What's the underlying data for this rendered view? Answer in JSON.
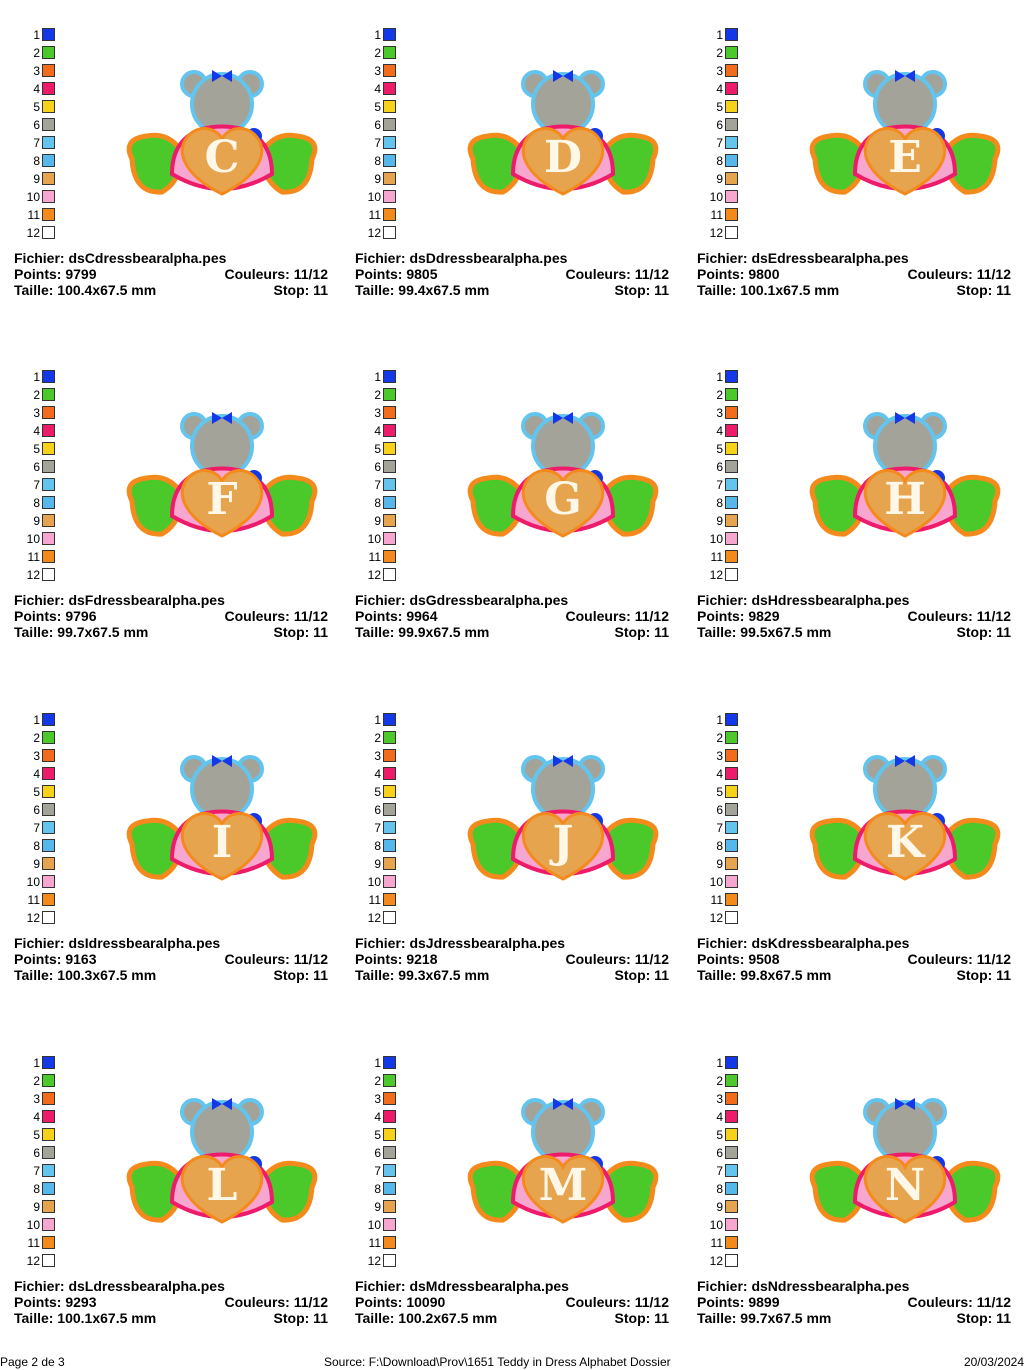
{
  "palette": {
    "numbers": [
      "1",
      "2",
      "3",
      "4",
      "5",
      "6",
      "7",
      "8",
      "9",
      "10",
      "11",
      "12"
    ],
    "colors": [
      "#1238e8",
      "#4bc92a",
      "#f26c1c",
      "#ee1a6a",
      "#f7d21a",
      "#a3a39a",
      "#63c4ee",
      "#56b8ea",
      "#e6a44e",
      "#f7a6d0",
      "#f58a1c",
      "#ffffff"
    ]
  },
  "designs": [
    {
      "letter": "C",
      "file_label": "Fichier: dsCdressbearalpha.pes",
      "points_label": "Points: 9799",
      "colors_label": "Couleurs: 11/12",
      "size_label": "Taille: 100.4x67.5 mm",
      "stop_label": "Stop: 11"
    },
    {
      "letter": "D",
      "file_label": "Fichier: dsDdressbearalpha.pes",
      "points_label": "Points: 9805",
      "colors_label": "Couleurs: 11/12",
      "size_label": "Taille: 99.4x67.5 mm",
      "stop_label": "Stop: 11"
    },
    {
      "letter": "E",
      "file_label": "Fichier: dsEdressbearalpha.pes",
      "points_label": "Points: 9800",
      "colors_label": "Couleurs: 11/12",
      "size_label": "Taille: 100.1x67.5 mm",
      "stop_label": "Stop: 11"
    },
    {
      "letter": "F",
      "file_label": "Fichier: dsFdressbearalpha.pes",
      "points_label": "Points: 9796",
      "colors_label": "Couleurs: 11/12",
      "size_label": "Taille: 99.7x67.5 mm",
      "stop_label": "Stop: 11"
    },
    {
      "letter": "G",
      "file_label": "Fichier: dsGdressbearalpha.pes",
      "points_label": "Points: 9964",
      "colors_label": "Couleurs: 11/12",
      "size_label": "Taille: 99.9x67.5 mm",
      "stop_label": "Stop: 11"
    },
    {
      "letter": "H",
      "file_label": "Fichier: dsHdressbearalpha.pes",
      "points_label": "Points: 9829",
      "colors_label": "Couleurs: 11/12",
      "size_label": "Taille: 99.5x67.5 mm",
      "stop_label": "Stop: 11"
    },
    {
      "letter": "I",
      "file_label": "Fichier: dsIdressbearalpha.pes",
      "points_label": "Points: 9163",
      "colors_label": "Couleurs: 11/12",
      "size_label": "Taille: 100.3x67.5 mm",
      "stop_label": "Stop: 11"
    },
    {
      "letter": "J",
      "file_label": "Fichier: dsJdressbearalpha.pes",
      "points_label": "Points: 9218",
      "colors_label": "Couleurs: 11/12",
      "size_label": "Taille: 99.3x67.5 mm",
      "stop_label": "Stop: 11"
    },
    {
      "letter": "K",
      "file_label": "Fichier: dsKdressbearalpha.pes",
      "points_label": "Points: 9508",
      "colors_label": "Couleurs: 11/12",
      "size_label": "Taille: 99.8x67.5 mm",
      "stop_label": "Stop: 11"
    },
    {
      "letter": "L",
      "file_label": "Fichier: dsLdressbearalpha.pes",
      "points_label": "Points: 9293",
      "colors_label": "Couleurs: 11/12",
      "size_label": "Taille: 100.1x67.5 mm",
      "stop_label": "Stop: 11"
    },
    {
      "letter": "M",
      "file_label": "Fichier: dsMdressbearalpha.pes",
      "points_label": "Points: 10090",
      "colors_label": "Couleurs: 11/12",
      "size_label": "Taille: 100.2x67.5 mm",
      "stop_label": "Stop: 11"
    },
    {
      "letter": "N",
      "file_label": "Fichier: dsNdressbearalpha.pes",
      "points_label": "Points: 9899",
      "colors_label": "Couleurs: 11/12",
      "size_label": "Taille: 99.7x67.5 mm",
      "stop_label": "Stop: 11"
    }
  ],
  "footer": {
    "page": "Page 2 de 3",
    "source": "Source: F:\\Download\\Prov\\1651 Teddy in Dress Alphabet Dossier",
    "date": "20/03/2024"
  }
}
